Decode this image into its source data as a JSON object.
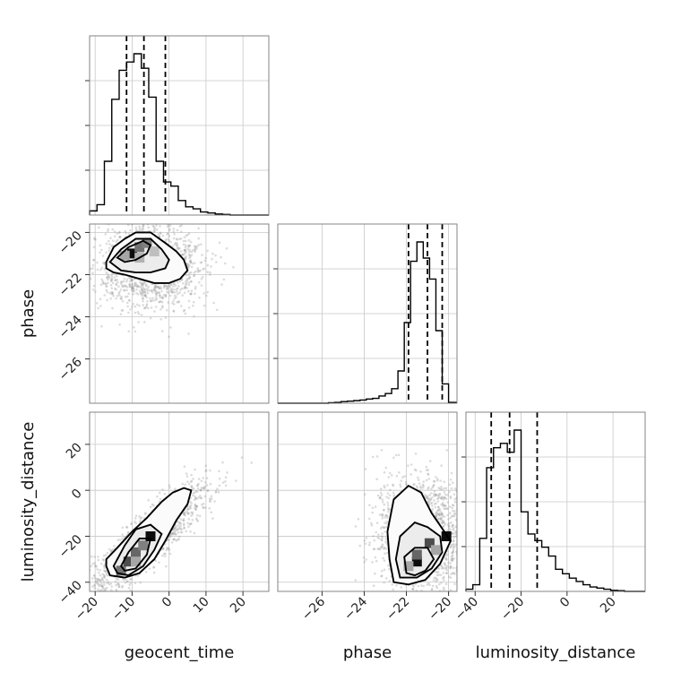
{
  "chart_data": {
    "type": "corner",
    "parameters": [
      "geocent_time",
      "phase",
      "luminosity_distance"
    ],
    "ranges": {
      "geocent_time": [
        -21.5,
        27
      ],
      "phase": [
        -28.1,
        -19.6
      ],
      "luminosity_distance": [
        -44,
        34
      ]
    },
    "ticks": {
      "geocent_time": [
        -20,
        -10,
        0,
        10,
        20
      ],
      "phase": [
        -26,
        -24,
        -22,
        -20
      ],
      "luminosity_distance": [
        -40,
        -20,
        0,
        20
      ]
    },
    "tick_labels": {
      "geocent_time": [
        "−20",
        "−10",
        "0",
        "10",
        "20"
      ],
      "phase": [
        "−26",
        "−24",
        "−22",
        "−20"
      ],
      "luminosity_distance": [
        "−40",
        "−20",
        "0",
        "20"
      ]
    },
    "quantiles": {
      "geocent_time": [
        -11.5,
        -6.8,
        -1.0
      ],
      "phase": [
        -21.9,
        -21.0,
        -20.3
      ],
      "luminosity_distance": [
        -33,
        -25,
        -13
      ]
    },
    "histograms": {
      "geocent_time": {
        "edges": [
          -21.5,
          -19.5,
          -17.5,
          -15.5,
          -13.5,
          -11.5,
          -9.5,
          -7.5,
          -5.5,
          -3.5,
          -1.5,
          0.5,
          2.5,
          4.5,
          6.5,
          8.5,
          10.5,
          12.5,
          14.5,
          16.5,
          18.5,
          20.5,
          27
        ],
        "counts": [
          2,
          5,
          26,
          56,
          70,
          74,
          78,
          71,
          57,
          26,
          16,
          14,
          7,
          4,
          3,
          1.5,
          1,
          0.5,
          0.3,
          0,
          0,
          0
        ]
      },
      "phase": {
        "edges": [
          -28.1,
          -27.8,
          -27.5,
          -27.2,
          -26.9,
          -26.6,
          -26.3,
          -26.0,
          -25.7,
          -25.4,
          -25.1,
          -24.8,
          -24.5,
          -24.2,
          -23.9,
          -23.6,
          -23.3,
          -23.0,
          -22.7,
          -22.4,
          -22.1,
          -21.8,
          -21.5,
          -21.2,
          -20.9,
          -20.6,
          -20.3,
          -20.0,
          -19.6
        ],
        "counts": [
          0,
          0,
          0,
          0,
          0,
          0,
          0,
          0,
          0.3,
          0.5,
          1,
          1.3,
          1.6,
          2,
          2.6,
          3,
          4.5,
          6,
          9,
          20,
          50,
          88,
          100,
          90,
          77,
          45,
          12,
          0.5
        ]
      },
      "luminosity_distance": {
        "edges": [
          -44,
          -41,
          -38,
          -35,
          -32,
          -29,
          -26,
          -23,
          -20,
          -17,
          -14,
          -11,
          -8,
          -5,
          -2,
          1,
          4,
          7,
          10,
          13,
          16,
          19,
          22,
          25,
          28,
          34
        ],
        "counts": [
          1,
          3,
          24,
          56,
          65,
          67,
          63,
          73,
          36,
          26,
          23,
          20,
          16,
          10,
          8,
          6,
          4.5,
          3,
          2,
          1.5,
          1,
          0.5,
          0.3,
          0,
          0
        ]
      }
    },
    "density_2d": [
      {
        "x": "geocent_time",
        "y": "phase",
        "scatter_center": [
          -5,
          -21.6
        ],
        "scatter_spread": [
          7,
          1.0
        ],
        "contours": [
          [
            [
              -17,
              -21.4
            ],
            [
              -15,
              -20.7
            ],
            [
              -12,
              -20.3
            ],
            [
              -9,
              -20.0
            ],
            [
              -5,
              -20.0
            ],
            [
              -1,
              -20.5
            ],
            [
              2,
              -20.9
            ],
            [
              4,
              -21.3
            ],
            [
              5,
              -21.8
            ],
            [
              3,
              -22.2
            ],
            [
              0,
              -22.4
            ],
            [
              -4,
              -22.4
            ],
            [
              -8,
              -22.2
            ],
            [
              -12,
              -22.0
            ],
            [
              -15,
              -21.9
            ],
            [
              -17,
              -21.7
            ]
          ],
          [
            [
              -16,
              -21.4
            ],
            [
              -13,
              -20.8
            ],
            [
              -9,
              -20.3
            ],
            [
              -5,
              -20.3
            ],
            [
              -2,
              -20.8
            ],
            [
              0,
              -21.3
            ],
            [
              -1,
              -21.7
            ],
            [
              -5,
              -21.9
            ],
            [
              -9,
              -21.9
            ],
            [
              -13,
              -21.8
            ]
          ],
          [
            [
              -14,
              -21.2
            ],
            [
              -11,
              -20.7
            ],
            [
              -7,
              -20.4
            ],
            [
              -5,
              -20.6
            ],
            [
              -6,
              -21.0
            ],
            [
              -9,
              -21.3
            ],
            [
              -12,
              -21.4
            ]
          ]
        ],
        "cells": [
          {
            "x": -10,
            "y": -21.0,
            "w": 0.95
          },
          {
            "x": -8,
            "y": -20.7,
            "w": 0.55
          },
          {
            "x": -6,
            "y": -20.5,
            "w": 0.5
          },
          {
            "x": -12,
            "y": -21.1,
            "w": 0.35
          },
          {
            "x": -8,
            "y": -21.2,
            "w": 0.3
          },
          {
            "x": -4,
            "y": -20.9,
            "w": 0.25
          }
        ]
      },
      {
        "x": "geocent_time",
        "y": "luminosity_distance",
        "scatter_center": [
          -6,
          -22
        ],
        "scatter_spread": [
          8,
          12
        ],
        "contours": [
          [
            [
              -17,
              -33
            ],
            [
              -16,
              -37
            ],
            [
              -12,
              -38
            ],
            [
              -8,
              -36
            ],
            [
              -4,
              -30
            ],
            [
              -1,
              -22
            ],
            [
              2,
              -13
            ],
            [
              5,
              -6
            ],
            [
              6,
              0
            ],
            [
              4,
              1
            ],
            [
              1,
              -1
            ],
            [
              -2,
              -5
            ],
            [
              -6,
              -12
            ],
            [
              -10,
              -18
            ],
            [
              -14,
              -25
            ],
            [
              -17,
              -30
            ]
          ],
          [
            [
              -15,
              -33
            ],
            [
              -14,
              -36
            ],
            [
              -11,
              -37
            ],
            [
              -7,
              -33
            ],
            [
              -4,
              -26
            ],
            [
              -2,
              -19
            ],
            [
              -5,
              -15
            ],
            [
              -9,
              -17
            ],
            [
              -12,
              -24
            ]
          ],
          [
            [
              -13,
              -33
            ],
            [
              -12,
              -35
            ],
            [
              -9,
              -34
            ],
            [
              -6,
              -28
            ],
            [
              -5,
              -21
            ],
            [
              -8,
              -21
            ],
            [
              -11,
              -27
            ]
          ]
        ],
        "cells": [
          {
            "x": -13,
            "y": -35,
            "w": 0.55
          },
          {
            "x": -11,
            "y": -31,
            "w": 0.7
          },
          {
            "x": -9,
            "y": -27,
            "w": 0.6
          },
          {
            "x": -7,
            "y": -24,
            "w": 0.5
          },
          {
            "x": -5,
            "y": -20,
            "w": 0.95
          },
          {
            "x": -9,
            "y": -31,
            "w": 0.35
          }
        ]
      },
      {
        "x": "phase",
        "y": "luminosity_distance",
        "scatter_center": [
          -21.3,
          -20
        ],
        "scatter_spread": [
          1.1,
          13
        ],
        "contours": [
          [
            [
              -22.6,
              -40
            ],
            [
              -22.8,
              -30
            ],
            [
              -22.9,
              -18
            ],
            [
              -22.6,
              -4
            ],
            [
              -21.9,
              2
            ],
            [
              -21.3,
              -1
            ],
            [
              -20.8,
              -10
            ],
            [
              -20.2,
              -18
            ],
            [
              -19.9,
              -22
            ],
            [
              -20.4,
              -32
            ],
            [
              -21.1,
              -39
            ],
            [
              -21.9,
              -41
            ]
          ],
          [
            [
              -22.3,
              -38
            ],
            [
              -22.5,
              -30
            ],
            [
              -22.3,
              -20
            ],
            [
              -21.6,
              -14
            ],
            [
              -21.0,
              -16
            ],
            [
              -20.4,
              -20
            ],
            [
              -20.3,
              -27
            ],
            [
              -20.8,
              -34
            ],
            [
              -21.5,
              -38
            ]
          ],
          [
            [
              -22.0,
              -36
            ],
            [
              -22.1,
              -29
            ],
            [
              -21.6,
              -25
            ],
            [
              -21.0,
              -25
            ],
            [
              -20.7,
              -30
            ],
            [
              -21.1,
              -35
            ],
            [
              -21.6,
              -37
            ]
          ]
        ],
        "cells": [
          {
            "x": -21.5,
            "y": -31,
            "w": 0.95
          },
          {
            "x": -21.5,
            "y": -28,
            "w": 0.6
          },
          {
            "x": -20.9,
            "y": -23,
            "w": 0.7
          },
          {
            "x": -20.1,
            "y": -20,
            "w": 0.95
          },
          {
            "x": -20.6,
            "y": -26,
            "w": 0.35
          },
          {
            "x": -21.9,
            "y": -33,
            "w": 0.35
          }
        ]
      }
    ]
  }
}
